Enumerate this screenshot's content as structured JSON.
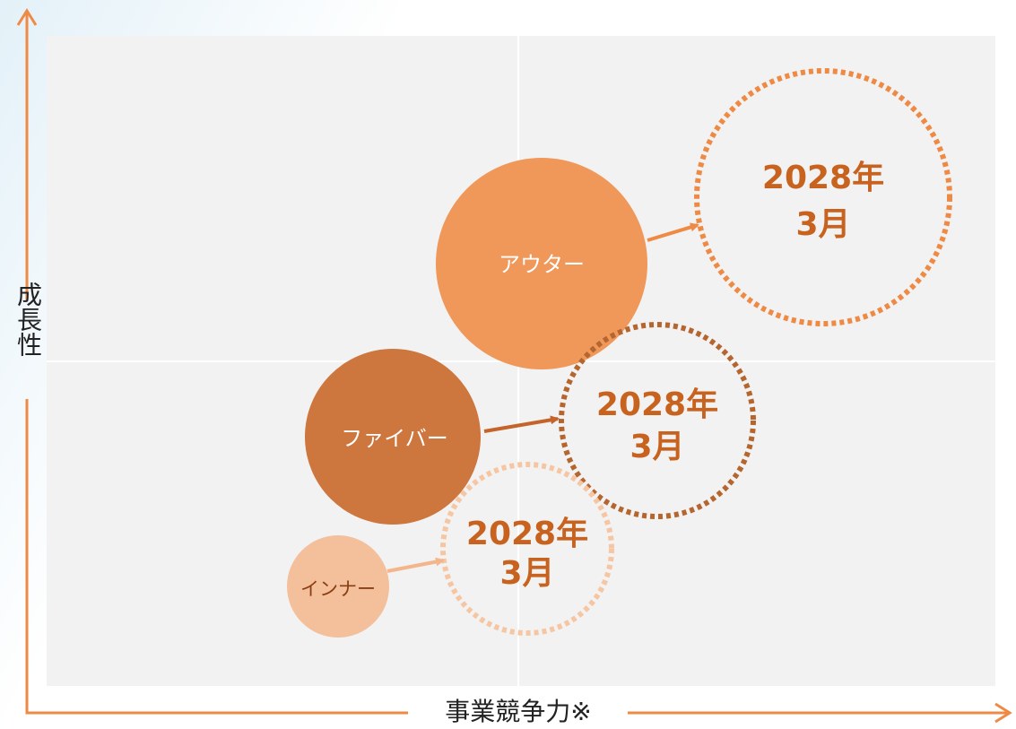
{
  "axes": {
    "y_label": "成長性",
    "x_label": "事業競争力※"
  },
  "nodes": [
    {
      "label": "アウター",
      "target": [
        "2028年",
        "3月"
      ]
    },
    {
      "label": "ファイバー",
      "target": [
        "2028年",
        "3月"
      ]
    },
    {
      "label": "インナー",
      "target": [
        "2028年",
        "3月"
      ]
    }
  ]
}
